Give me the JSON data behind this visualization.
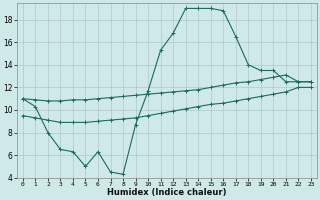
{
  "xlabel": "Humidex (Indice chaleur)",
  "bg_color": "#cfe8e8",
  "grid_color": "#b0c8c8",
  "line_color": "#1a6b5a",
  "xlim": [
    -0.5,
    23.5
  ],
  "ylim": [
    4,
    19.5
  ],
  "yticks": [
    4,
    6,
    8,
    10,
    12,
    14,
    16,
    18
  ],
  "xticks": [
    0,
    1,
    2,
    3,
    4,
    5,
    6,
    7,
    8,
    9,
    10,
    11,
    12,
    13,
    14,
    15,
    16,
    17,
    18,
    19,
    20,
    21,
    22,
    23
  ],
  "line1_x": [
    0,
    1,
    2,
    3,
    4,
    5,
    6,
    7,
    8,
    9,
    10,
    11,
    12,
    13,
    14,
    15,
    16,
    17,
    18,
    19,
    20,
    21,
    22,
    23
  ],
  "line1_y": [
    11.0,
    10.3,
    8.0,
    6.5,
    6.3,
    5.0,
    6.3,
    4.5,
    4.3,
    8.7,
    11.7,
    15.3,
    16.8,
    19.0,
    19.0,
    19.0,
    18.8,
    16.5,
    14.0,
    13.5,
    13.5,
    12.5,
    12.5,
    12.5
  ],
  "line2_x": [
    0,
    1,
    2,
    3,
    4,
    5,
    6,
    7,
    8,
    9,
    10,
    11,
    12,
    13,
    14,
    15,
    16,
    17,
    18,
    19,
    20,
    21,
    22,
    23
  ],
  "line2_y": [
    11.0,
    10.9,
    10.8,
    10.8,
    10.9,
    10.9,
    11.0,
    11.1,
    11.2,
    11.3,
    11.4,
    11.5,
    11.6,
    11.7,
    11.8,
    12.0,
    12.2,
    12.4,
    12.5,
    12.7,
    12.9,
    13.1,
    12.5,
    12.5
  ],
  "line3_x": [
    0,
    1,
    2,
    3,
    4,
    5,
    6,
    7,
    8,
    9,
    10,
    11,
    12,
    13,
    14,
    15,
    16,
    17,
    18,
    19,
    20,
    21,
    22,
    23
  ],
  "line3_y": [
    9.5,
    9.3,
    9.1,
    8.9,
    8.9,
    8.9,
    9.0,
    9.1,
    9.2,
    9.3,
    9.5,
    9.7,
    9.9,
    10.1,
    10.3,
    10.5,
    10.6,
    10.8,
    11.0,
    11.2,
    11.4,
    11.6,
    12.0,
    12.0
  ]
}
